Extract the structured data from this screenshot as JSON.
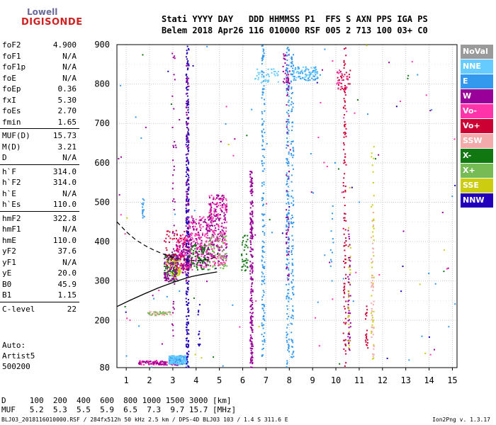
{
  "logo": {
    "line1": "Lowell",
    "line2": "DIGISONDE"
  },
  "header": {
    "labels": "Stati YYYY DAY   DDD HHMMSS P1  FFS S AXN PPS IGA PS",
    "values": "Belem 2018 Apr26 116 010000 RSF 005 2 713 100 03+ C0"
  },
  "params": {
    "group1": [
      [
        "foF2",
        "4.900"
      ],
      [
        "foF1",
        "N/A"
      ],
      [
        "foF1p",
        "N/A"
      ],
      [
        "foE",
        "N/A"
      ],
      [
        "foEp",
        "0.36"
      ],
      [
        "fxI",
        "5.30"
      ],
      [
        "foEs",
        "2.70"
      ],
      [
        "fmin",
        "1.65"
      ]
    ],
    "group2": [
      [
        "MUF(D)",
        "15.73"
      ],
      [
        "M(D)",
        "3.21"
      ],
      [
        "D",
        "N/A"
      ]
    ],
    "group3": [
      [
        "h`F",
        "314.0"
      ],
      [
        "h`F2",
        "314.0"
      ],
      [
        "h`E",
        "N/A"
      ],
      [
        "h`Es",
        "110.0"
      ]
    ],
    "group4": [
      [
        "hmF2",
        "322.8"
      ],
      [
        "hmF1",
        "N/A"
      ],
      [
        "hmE",
        "110.0"
      ],
      [
        "yF2",
        "37.6"
      ],
      [
        "yF1",
        "N/A"
      ],
      [
        "yE",
        "20.0"
      ],
      [
        "B0",
        "45.9"
      ],
      [
        "B1",
        "1.15"
      ]
    ],
    "group5": [
      [
        "C-level",
        "22"
      ]
    ]
  },
  "autoscale": {
    "line1": "Auto:",
    "line2": "Artist5",
    "line3": "500200"
  },
  "dmuf": {
    "line1": "D     100  200  400  600  800 1000 1500 3000 [km]",
    "line2": "MUF   5.2  5.3  5.5  5.9  6.5  7.3  9.7 15.7 [MHz]"
  },
  "footer": {
    "left": "BLJ03_2018116010000.RSF / 284fx512h 50 kHz 2.5 km / DPS-4D BLJ03 103 / 1.4 S 311.6 E",
    "right": "Ion2Png v. 1.3.17"
  },
  "legend": [
    {
      "label": "NoVal",
      "color": "#9a9a9a"
    },
    {
      "label": "NNE",
      "color": "#66ccff"
    },
    {
      "label": "E",
      "color": "#3399ee"
    },
    {
      "label": "W",
      "color": "#990099"
    },
    {
      "label": "Vo-",
      "color": "#ff33aa"
    },
    {
      "label": "Vo+",
      "color": "#cc0033"
    },
    {
      "label": "SSW",
      "color": "#f4aaaa"
    },
    {
      "label": "X-",
      "color": "#117711"
    },
    {
      "label": "X+",
      "color": "#77bb55"
    },
    {
      "label": "SSE",
      "color": "#cccc11"
    },
    {
      "label": "NNW",
      "color": "#2200bb"
    }
  ],
  "chart_data": {
    "type": "scatter",
    "xlabel": "",
    "ylabel": "",
    "xlim": [
      0.6,
      15.2
    ],
    "ylim": [
      80,
      900
    ],
    "x_ticks": [
      1,
      2,
      3,
      4,
      5,
      6,
      7,
      8,
      9,
      10,
      11,
      12,
      13,
      14,
      15
    ],
    "y_ticks": [
      80,
      200,
      300,
      400,
      500,
      600,
      700,
      800,
      900
    ],
    "x_tick_labels": [
      "1",
      "2",
      "3",
      "4",
      "5",
      "6",
      "7",
      "8",
      "9",
      "10",
      "11",
      "12",
      "13",
      "14",
      "15"
    ],
    "y_tick_labels": [
      "80",
      "200",
      "300",
      "400",
      "500",
      "600",
      "700",
      "800",
      "900"
    ],
    "grid": true,
    "profile": {
      "x": [
        0.6,
        1.2,
        1.8,
        2.4,
        3.0,
        3.4,
        3.8,
        4.2,
        4.6,
        4.9
      ],
      "y": [
        235,
        252,
        268,
        283,
        296,
        304,
        311,
        316,
        320,
        323
      ]
    },
    "profile_dashed": {
      "x": [
        0.6,
        1.0,
        1.4,
        1.8,
        2.2,
        2.6,
        3.0,
        3.4,
        3.8,
        4.2,
        4.6,
        4.85,
        4.95
      ],
      "y": [
        450,
        425,
        405,
        390,
        378,
        368,
        360,
        354,
        352,
        352,
        355,
        362,
        372
      ]
    },
    "echo_regions": [
      {
        "x": [
          2.6,
          3.2
        ],
        "y": [
          300,
          370
        ],
        "color": "#117711",
        "n": 120
      },
      {
        "x": [
          2.6,
          3.2
        ],
        "y": [
          300,
          370
        ],
        "color": "#990099",
        "n": 90
      },
      {
        "x": [
          3.1,
          3.7
        ],
        "y": [
          330,
          420
        ],
        "color": "#ff33aa",
        "n": 120
      },
      {
        "x": [
          3.1,
          3.7
        ],
        "y": [
          320,
          400
        ],
        "color": "#990099",
        "n": 80
      },
      {
        "x": [
          3.6,
          4.5
        ],
        "y": [
          330,
          470
        ],
        "color": "#ff33aa",
        "n": 160
      },
      {
        "x": [
          3.6,
          4.5
        ],
        "y": [
          340,
          460
        ],
        "color": "#990099",
        "n": 110
      },
      {
        "x": [
          3.6,
          4.5
        ],
        "y": [
          330,
          400
        ],
        "color": "#117711",
        "n": 80
      },
      {
        "x": [
          4.5,
          5.3
        ],
        "y": [
          340,
          520
        ],
        "color": "#ff33aa",
        "n": 180
      },
      {
        "x": [
          4.5,
          5.3
        ],
        "y": [
          350,
          520
        ],
        "color": "#990099",
        "n": 140
      },
      {
        "x": [
          4.5,
          5.3
        ],
        "y": [
          330,
          420
        ],
        "color": "#77bb55",
        "n": 60
      },
      {
        "x": [
          2.6,
          3.6
        ],
        "y": [
          330,
          430
        ],
        "color": "#cc0033",
        "n": 60
      },
      {
        "x": [
          2.7,
          3.3
        ],
        "y": [
          310,
          360
        ],
        "color": "#cccc11",
        "n": 40
      },
      {
        "x": [
          1.5,
          3.2
        ],
        "y": [
          88,
          100
        ],
        "color": "#ff33aa",
        "n": 80
      },
      {
        "x": [
          1.5,
          3.2
        ],
        "y": [
          88,
          98
        ],
        "color": "#990099",
        "n": 60
      },
      {
        "x": [
          2.8,
          3.6
        ],
        "y": [
          90,
          112
        ],
        "color": "#3399ee",
        "n": 140
      },
      {
        "x": [
          2.8,
          3.6
        ],
        "y": [
          90,
          112
        ],
        "color": "#66ccff",
        "n": 90
      },
      {
        "x": [
          1.9,
          2.9
        ],
        "y": [
          214,
          224
        ],
        "color": "#f4aaaa",
        "n": 30
      },
      {
        "x": [
          1.9,
          2.9
        ],
        "y": [
          214,
          224
        ],
        "color": "#77bb55",
        "n": 25
      },
      {
        "x": [
          5.9,
          6.2
        ],
        "y": [
          325,
          420
        ],
        "color": "#117711",
        "n": 35
      },
      {
        "x": [
          6.5,
          7.5
        ],
        "y": [
          805,
          840
        ],
        "color": "#66ccff",
        "n": 40
      },
      {
        "x": [
          8.1,
          9.2
        ],
        "y": [
          810,
          845
        ],
        "color": "#3399ee",
        "n": 60
      },
      {
        "x": [
          8.1,
          9.2
        ],
        "y": [
          810,
          845
        ],
        "color": "#66ccff",
        "n": 40
      },
      {
        "x": [
          7.7,
          8.0
        ],
        "y": [
          800,
          880
        ],
        "color": "#990099",
        "n": 25
      },
      {
        "x": [
          10.0,
          10.6
        ],
        "y": [
          780,
          840
        ],
        "color": "#cc0033",
        "n": 30
      },
      {
        "x": [
          10.0,
          10.6
        ],
        "y": [
          780,
          840
        ],
        "color": "#ff33aa",
        "n": 20
      },
      {
        "x": [
          0.6,
          15.2
        ],
        "y": [
          80,
          900
        ],
        "color": "#3399ee",
        "n": 45
      },
      {
        "x": [
          0.6,
          15.2
        ],
        "y": [
          80,
          900
        ],
        "color": "#ff33aa",
        "n": 30
      },
      {
        "x": [
          0.6,
          15.2
        ],
        "y": [
          80,
          900
        ],
        "color": "#990099",
        "n": 25
      },
      {
        "x": [
          0.6,
          15.2
        ],
        "y": [
          80,
          900
        ],
        "color": "#117711",
        "n": 15
      },
      {
        "x": [
          0.6,
          15.2
        ],
        "y": [
          80,
          900
        ],
        "color": "#2200bb",
        "n": 15
      },
      {
        "x": [
          0.6,
          15.2
        ],
        "y": [
          80,
          900
        ],
        "color": "#cccc11",
        "n": 10
      }
    ],
    "echo_traces": [
      {
        "x": 3.6,
        "y": [
          80,
          900
        ],
        "color": "#2200bb",
        "n": 260
      },
      {
        "x": 3.6,
        "y": [
          300,
          850
        ],
        "color": "#990099",
        "n": 60
      },
      {
        "x": 3.0,
        "y": [
          160,
          900
        ],
        "color": "#990099",
        "n": 40
      },
      {
        "x": 6.35,
        "y": [
          80,
          580
        ],
        "color": "#990099",
        "n": 220
      },
      {
        "x": 6.85,
        "y": [
          110,
          900
        ],
        "color": "#3399ee",
        "n": 160
      },
      {
        "x": 7.9,
        "y": [
          80,
          900
        ],
        "color": "#3399ee",
        "n": 170
      },
      {
        "x": 7.9,
        "y": [
          300,
          840
        ],
        "color": "#990099",
        "n": 50
      },
      {
        "x": 8.1,
        "y": [
          100,
          880
        ],
        "color": "#3399ee",
        "n": 120
      },
      {
        "x": 10.35,
        "y": [
          80,
          900
        ],
        "color": "#cc0033",
        "n": 110
      },
      {
        "x": 10.55,
        "y": [
          120,
          440
        ],
        "color": "#990099",
        "n": 50
      },
      {
        "x": 10.55,
        "y": [
          120,
          440
        ],
        "color": "#cccc11",
        "n": 25
      },
      {
        "x": 11.55,
        "y": [
          100,
          660
        ],
        "color": "#cccc11",
        "n": 40
      },
      {
        "x": 11.55,
        "y": [
          100,
          480
        ],
        "color": "#f4aaaa",
        "n": 40
      },
      {
        "x": 11.3,
        "y": [
          130,
          240
        ],
        "color": "#cc0033",
        "n": 20
      },
      {
        "x": 9.8,
        "y": [
          300,
          500
        ],
        "color": "#3399ee",
        "n": 12
      },
      {
        "x": 4.1,
        "y": [
          120,
          260
        ],
        "color": "#2200bb",
        "n": 12
      },
      {
        "x": 1.7,
        "y": [
          460,
          520
        ],
        "color": "#3399ee",
        "n": 15
      }
    ]
  }
}
